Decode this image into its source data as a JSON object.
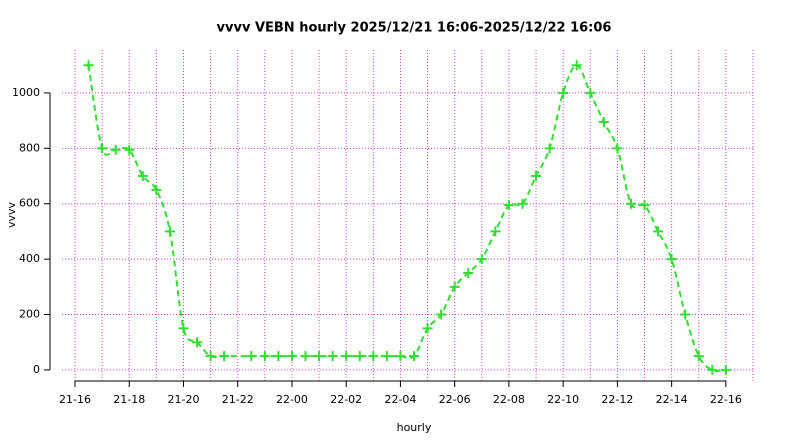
{
  "chart_data": {
    "type": "line",
    "title": "vvvv VEBN hourly 2025/12/21 16:06-2025/12/22 16:06",
    "x_label": "hourly",
    "y_label": "vvvv",
    "series": [
      {
        "name": "vvvv",
        "color": "#33dd33",
        "x": [
          0.5,
          1,
          1.5,
          2,
          2.5,
          3,
          3.5,
          4,
          4.5,
          5,
          5.5,
          6.5,
          7,
          7.5,
          8,
          8.5,
          9,
          9.5,
          10,
          10.5,
          11,
          11.5,
          12,
          12.5,
          13,
          13.5,
          14,
          14.5,
          15,
          15.5,
          16,
          16.5,
          17,
          17.5,
          18,
          18.5,
          19,
          19.5,
          20,
          20.5,
          21,
          21.5,
          22,
          22.5,
          23,
          23.5,
          24
        ],
        "values": [
          1100,
          800,
          795,
          795,
          700,
          650,
          500,
          150,
          100,
          50,
          50,
          50,
          50,
          50,
          50,
          50,
          50,
          50,
          50,
          50,
          50,
          50,
          50,
          50,
          150,
          200,
          300,
          350,
          400,
          500,
          595,
          600,
          700,
          800,
          1000,
          1100,
          1000,
          895,
          800,
          600,
          595,
          500,
          400,
          200,
          50,
          0,
          0
        ]
      }
    ],
    "xlim": [
      0,
      25
    ],
    "xticks": [
      {
        "value": 0,
        "label": "21-16"
      },
      {
        "value": 2,
        "label": "21-18"
      },
      {
        "value": 4,
        "label": "21-20"
      },
      {
        "value": 6,
        "label": "21-22"
      },
      {
        "value": 8,
        "label": "22-00"
      },
      {
        "value": 10,
        "label": "22-02"
      },
      {
        "value": 12,
        "label": "22-04"
      },
      {
        "value": 14,
        "label": "22-06"
      },
      {
        "value": 16,
        "label": "22-08"
      },
      {
        "value": 18,
        "label": "22-10"
      },
      {
        "value": 20,
        "label": "22-12"
      },
      {
        "value": 22,
        "label": "22-14"
      },
      {
        "value": 24,
        "label": "22-16"
      }
    ],
    "xminorticks": [
      1,
      3,
      5,
      7,
      9,
      11,
      13,
      15,
      17,
      19,
      21,
      23,
      25
    ],
    "ylim": [
      -40,
      1155
    ],
    "yticks": [
      0,
      200,
      400,
      600,
      800,
      1000
    ],
    "grid": true,
    "grid_color": "#cc44cc"
  }
}
